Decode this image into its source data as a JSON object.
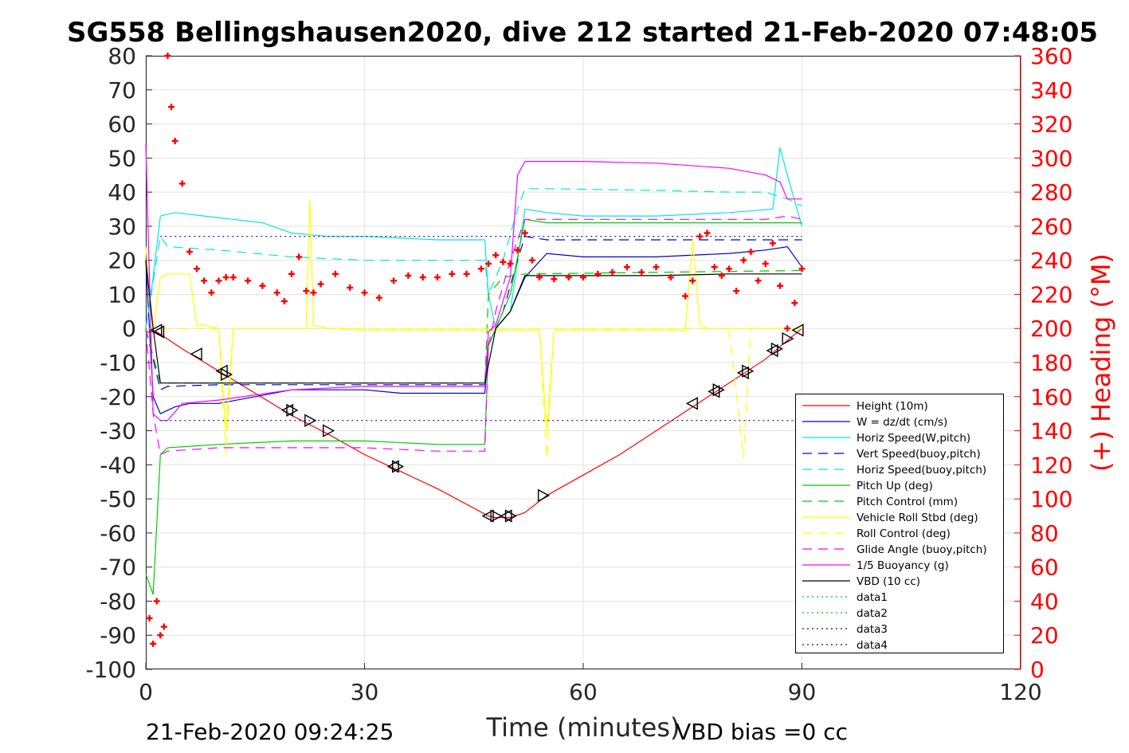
{
  "chart_data": {
    "type": "line",
    "title": "SG558 Bellingshausen2020, dive 212 started 21-Feb-2020 07:48:05",
    "xlabel": "Time (minutes)",
    "ylabel": "",
    "y2label": "(+) Heading (°M)",
    "xlim": [
      0,
      120
    ],
    "ylim": [
      -100,
      80
    ],
    "y2lim": [
      0,
      360
    ],
    "xticks": [
      "0",
      "30",
      "60",
      "90",
      "120"
    ],
    "yticks": [
      "80",
      "70",
      "60",
      "50",
      "40",
      "30",
      "20",
      "10",
      "0",
      "-10",
      "-20",
      "-30",
      "-40",
      "-50",
      "-60",
      "-70",
      "-80",
      "-90",
      "-100"
    ],
    "y2ticks": [
      "360",
      "340",
      "320",
      "300",
      "280",
      "260",
      "240",
      "220",
      "200",
      "180",
      "160",
      "140",
      "120",
      "100",
      "80",
      "60",
      "40",
      "20",
      "0"
    ],
    "footer_left": "21-Feb-2020 09:24:25",
    "footer_right": "VBD bias =0 cc",
    "grid": true,
    "legend_position": "lower-right",
    "colors": {
      "heading": "#ff0000",
      "axis_right": "#ff0000",
      "axis_left": "#262626"
    },
    "series": [
      {
        "name": "Height (10m)",
        "color": "#ff0000",
        "dash": "solid",
        "x": [
          0,
          1.5,
          5,
          10,
          15,
          20,
          25,
          30,
          34,
          40,
          47,
          48,
          50,
          52,
          55,
          60,
          65,
          70,
          75,
          80,
          85,
          88,
          90
        ],
        "y": [
          -1,
          -1,
          -6,
          -12.5,
          -19,
          -25.5,
          -31,
          -37,
          -41,
          -47,
          -55,
          -55.5,
          -55.5,
          -54,
          -49,
          -43,
          -37,
          -30,
          -23,
          -16,
          -9,
          -3.5,
          0
        ]
      },
      {
        "name": "W = dz/dt (cm/s)",
        "color": "#0000cd",
        "dash": "solid",
        "x": [
          0,
          1,
          2,
          4,
          6,
          10,
          15,
          20,
          25,
          30,
          35,
          40,
          46.5,
          47,
          48,
          50,
          52,
          55,
          60,
          70,
          80,
          85,
          88,
          90
        ],
        "y": [
          20,
          -20,
          -25,
          -23,
          -22,
          -22,
          -20,
          -18,
          -18,
          -18,
          -19,
          -19,
          -19,
          -5,
          0,
          5,
          15,
          22,
          21,
          21,
          22,
          23,
          24,
          18
        ]
      },
      {
        "name": "Horiz Speed(W,pitch)",
        "color": "#00e5e5",
        "dash": "solid",
        "x": [
          0,
          1,
          2,
          4,
          8,
          12,
          16,
          20,
          25,
          30,
          40,
          46.5,
          47,
          48,
          50,
          52,
          55,
          60,
          70,
          80,
          86,
          87,
          88,
          90
        ],
        "y": [
          0,
          15,
          33,
          34,
          33,
          32,
          31,
          28,
          27,
          27,
          26,
          26,
          10,
          0,
          5,
          35,
          34,
          33,
          33,
          34,
          35,
          53,
          45,
          30
        ]
      },
      {
        "name": "Vert Speed(buoy,pitch)",
        "color": "#0000cd",
        "dash": "long",
        "x": [
          0,
          2,
          3,
          10,
          20,
          30,
          40,
          46.5,
          47,
          49,
          51,
          52,
          55,
          70,
          85,
          88,
          90
        ],
        "y": [
          0,
          -18,
          -17,
          -16.5,
          -16.5,
          -16.5,
          -16.5,
          -16.5,
          -5,
          5,
          20,
          27,
          26,
          26,
          26,
          26,
          26
        ]
      },
      {
        "name": "Horiz Speed(buoy,pitch)",
        "color": "#00e5e5",
        "dash": "long",
        "x": [
          0,
          2,
          3,
          10,
          20,
          30,
          40,
          46.5,
          47,
          49,
          51,
          52,
          55,
          70,
          80,
          85,
          88,
          90
        ],
        "y": [
          0,
          27,
          24,
          23,
          21,
          20,
          20,
          20,
          10,
          20,
          35,
          41,
          41,
          40.5,
          40,
          40,
          38,
          36
        ]
      },
      {
        "name": "Pitch Up (deg)",
        "color": "#00cc00",
        "dash": "solid",
        "x": [
          0,
          1,
          2,
          3,
          10,
          20,
          30,
          40,
          46.5,
          47,
          48,
          50,
          52,
          55,
          70,
          85,
          88,
          90
        ],
        "y": [
          -72,
          -78,
          -37,
          -35,
          -34,
          -33,
          -33,
          -34,
          -34,
          -5,
          0,
          10,
          32,
          31,
          31,
          31,
          31,
          31
        ]
      },
      {
        "name": "Pitch Control (mm)",
        "color": "#00cc00",
        "dash": "long",
        "x": [
          0,
          2,
          3,
          46.5,
          47,
          49,
          52,
          90
        ],
        "y": [
          0,
          -16,
          -16,
          -16,
          10,
          15,
          16,
          17
        ]
      },
      {
        "name": "Vehicle Roll Stbd (deg)",
        "color": "#ffff00",
        "dash": "solid",
        "x": [
          0,
          1,
          2,
          3,
          6,
          7,
          8,
          10,
          11,
          12,
          20,
          22,
          22.5,
          23,
          25,
          30,
          40,
          50,
          54,
          55,
          56,
          60,
          70,
          74,
          75,
          76,
          77,
          80,
          90
        ],
        "y": [
          24,
          0,
          15,
          16,
          16,
          1,
          1,
          0,
          -30,
          0,
          0,
          0,
          38,
          1,
          0,
          -0.5,
          -0.5,
          -0.5,
          -0.5,
          -30,
          -0.5,
          -0.5,
          -0.5,
          -0.5,
          26,
          1,
          0,
          0,
          0
        ]
      },
      {
        "name": "Roll Control (deg)",
        "color": "#ffff00",
        "dash": "long",
        "x": [
          0,
          2,
          3,
          10,
          11,
          12,
          40,
          54,
          55,
          56,
          80,
          82,
          83,
          90
        ],
        "y": [
          0,
          0,
          0,
          0,
          -37,
          0,
          0,
          0,
          -38,
          0,
          0,
          -38,
          0,
          0
        ]
      },
      {
        "name": "Glide Angle (buoy,pitch)",
        "color": "#ff00ff",
        "dash": "long",
        "x": [
          0,
          1,
          2,
          3,
          10,
          20,
          30,
          40,
          46.5,
          47,
          48,
          50,
          52,
          55,
          70,
          85,
          88,
          90
        ],
        "y": [
          0,
          -25,
          -37,
          -36,
          -35,
          -35,
          -35,
          -36,
          -36,
          -5,
          5,
          20,
          32,
          32,
          32,
          32,
          33,
          32
        ]
      },
      {
        "name": "1/5 Buoyancy (g)",
        "color": "#ff00ff",
        "dash": "solid",
        "x": [
          0,
          1,
          2,
          3,
          5,
          10,
          20,
          30,
          40,
          46.5,
          47,
          48,
          50,
          51,
          52,
          55,
          60,
          70,
          80,
          85,
          87,
          88,
          90
        ],
        "y": [
          54,
          -25,
          -27,
          -27,
          -22,
          -21,
          -18,
          -17,
          -17,
          -17,
          -1,
          1,
          15,
          45,
          49,
          49,
          49,
          48.5,
          47,
          45,
          43,
          38,
          38
        ]
      },
      {
        "name": "VBD (10 cc)",
        "color": "#000000",
        "dash": "solid",
        "x": [
          0,
          1,
          2,
          10,
          20,
          30,
          40,
          46.5,
          48,
          50,
          52,
          60,
          70,
          80,
          90
        ],
        "y": [
          20,
          0,
          -16,
          -16,
          -16,
          -16,
          -16,
          -16,
          0,
          5,
          15.5,
          15.5,
          15.5,
          16,
          16
        ]
      },
      {
        "name": "data1",
        "color": "#00cc00",
        "dash": "dot",
        "x": [],
        "y": []
      },
      {
        "name": "data2",
        "color": "#00cc00",
        "dash": "dot",
        "x": [],
        "y": []
      },
      {
        "name": "data3",
        "color": "#0000cd",
        "dash": "dot",
        "x": [
          2,
          90
        ],
        "y": [
          27,
          27
        ]
      },
      {
        "name": "data4",
        "color": "#0000cd",
        "dash": "dot",
        "x": [
          2,
          90
        ],
        "y": [
          -27,
          -27
        ]
      }
    ],
    "heading": {
      "x": [
        0.5,
        1,
        1.5,
        2,
        2.5,
        3,
        3.5,
        4,
        5,
        6,
        7,
        8,
        9,
        10,
        11,
        12,
        14,
        16,
        18,
        19,
        20,
        21,
        22,
        23,
        24,
        26,
        28,
        30,
        32,
        34,
        36,
        38,
        40,
        42,
        44,
        46,
        47,
        48,
        49,
        50,
        51,
        52,
        53,
        54,
        56,
        58,
        60,
        62,
        64,
        66,
        68,
        70,
        72,
        74,
        75,
        76,
        77,
        78,
        79,
        80,
        81,
        82,
        83,
        84,
        85,
        86,
        87,
        88,
        89,
        90
      ],
      "y": [
        30,
        15,
        40,
        20,
        25,
        360,
        330,
        310,
        285,
        245,
        235,
        228,
        221,
        228,
        230,
        230,
        228,
        225,
        221,
        216,
        232,
        242,
        222,
        221,
        226,
        232,
        224,
        221,
        218,
        228,
        231,
        230,
        230,
        232,
        232,
        235,
        238,
        243,
        239,
        238,
        246,
        256,
        240,
        230,
        229,
        230,
        230,
        232,
        233,
        236,
        233,
        236,
        230,
        219,
        228,
        254,
        256,
        236,
        231,
        235,
        222,
        240,
        245,
        228,
        238,
        250,
        225,
        200,
        215,
        235
      ]
    },
    "markers": {
      "x": [
        1.5,
        1.8,
        7,
        10.5,
        11,
        19.5,
        20,
        22.5,
        25,
        34,
        34.5,
        47,
        48,
        49.5,
        50,
        54.5,
        75,
        78,
        78.5,
        82,
        82.5,
        86,
        86.5,
        88,
        89.5
      ],
      "y": [
        -0.5,
        -1,
        -7.5,
        -12.5,
        -13.5,
        -24,
        -24,
        -27,
        -30,
        -40.5,
        -40.5,
        -55,
        -55,
        -55,
        -55,
        -49,
        -22,
        -18.5,
        -18,
        -13,
        -12.5,
        -6.5,
        -6,
        -3,
        -0.5
      ],
      "dir": [
        "l",
        "l",
        "l",
        "l",
        "r",
        "l",
        "r",
        "r",
        "r",
        "l",
        "r",
        "l",
        "r",
        "l",
        "r",
        "r",
        "l",
        "l",
        "r",
        "l",
        "r",
        "l",
        "r",
        "r",
        "l"
      ]
    }
  }
}
